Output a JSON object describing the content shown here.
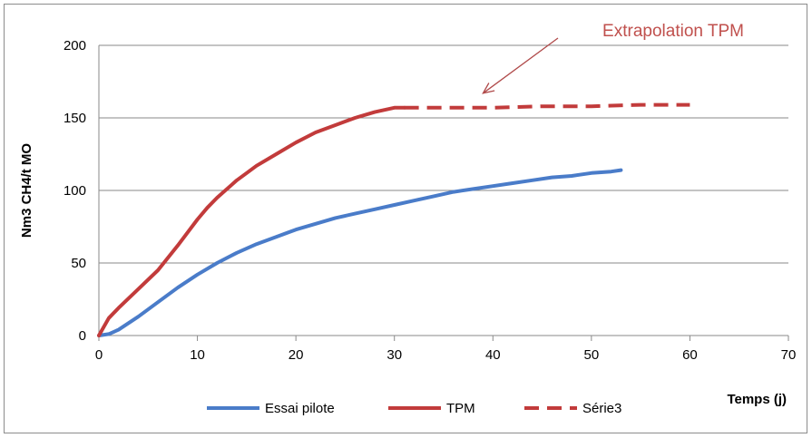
{
  "chart_data": {
    "type": "line",
    "xlabel": "Temps (j)",
    "ylabel": "Nm3 CH4/t MO",
    "xlim": [
      0,
      70
    ],
    "ylim": [
      0,
      200
    ],
    "x_ticks": [
      "0",
      "10",
      "20",
      "30",
      "40",
      "50",
      "60",
      "70"
    ],
    "y_ticks": [
      "0",
      "50",
      "100",
      "150",
      "200"
    ],
    "grid": "horizontal",
    "legend_position": "bottom",
    "series": [
      {
        "name": "Essai pilote",
        "color": "#4a7cc9",
        "style": "solid",
        "x": [
          0,
          1,
          2,
          4,
          6,
          8,
          10,
          12,
          14,
          16,
          18,
          20,
          22,
          24,
          26,
          28,
          30,
          32,
          34,
          36,
          38,
          40,
          42,
          44,
          46,
          48,
          50,
          52,
          53
        ],
        "y": [
          0,
          1,
          4,
          13,
          23,
          33,
          42,
          50,
          57,
          63,
          68,
          73,
          77,
          81,
          84,
          87,
          90,
          93,
          96,
          99,
          101,
          103,
          105,
          107,
          109,
          110,
          112,
          113,
          114
        ]
      },
      {
        "name": "TPM",
        "color": "#c23b3b",
        "style": "solid",
        "x": [
          0,
          1,
          2,
          4,
          6,
          8,
          10,
          11,
          12,
          14,
          15,
          16,
          18,
          20,
          22,
          24,
          26,
          28,
          30,
          31
        ],
        "y": [
          0,
          12,
          19,
          32,
          45,
          62,
          80,
          88,
          95,
          107,
          112,
          117,
          125,
          133,
          140,
          145,
          150,
          154,
          157,
          157
        ]
      },
      {
        "name": "Série3",
        "color": "#c23b3b",
        "style": "dashed",
        "x": [
          31,
          35,
          40,
          45,
          50,
          55,
          60
        ],
        "y": [
          157,
          157,
          157,
          158,
          158,
          159,
          159
        ]
      }
    ],
    "annotation": {
      "text": "Extrapolation TPM",
      "color": "#c0504d",
      "points_to": {
        "x": 39,
        "y": 167
      }
    }
  }
}
